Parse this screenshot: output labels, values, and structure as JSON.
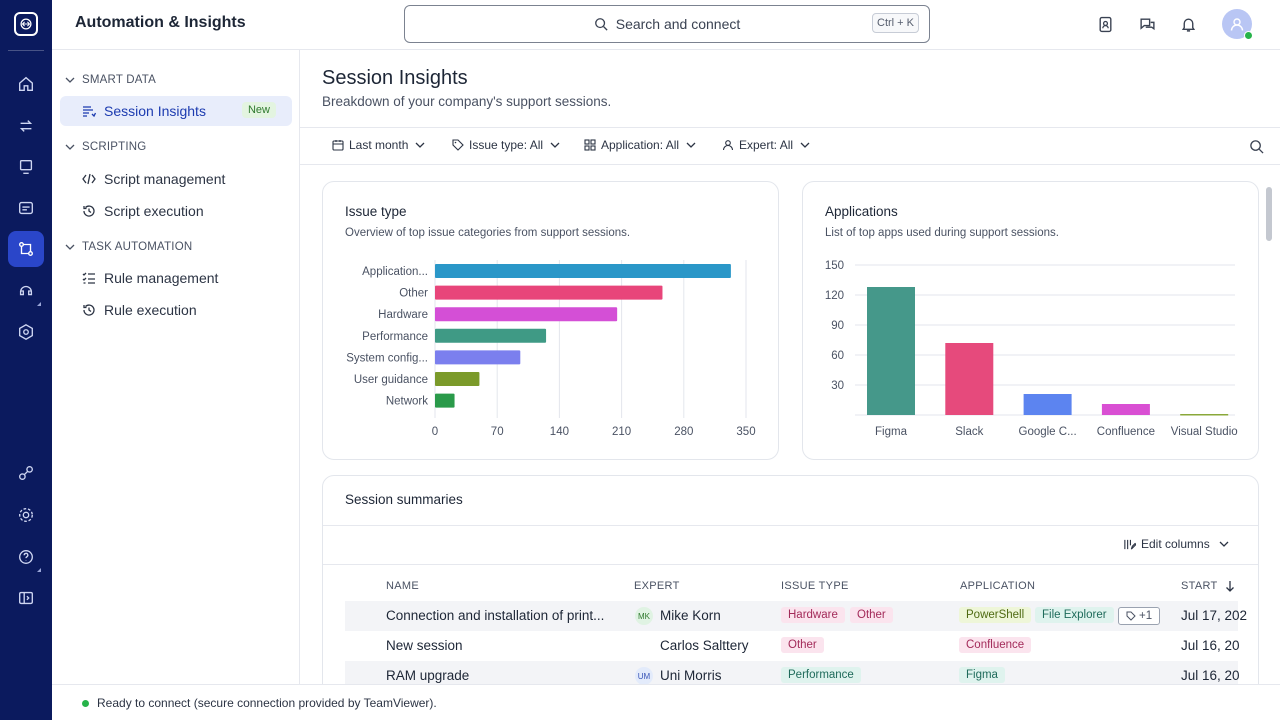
{
  "header": {
    "title": "Automation & Insights",
    "search_placeholder": "Search and connect",
    "shortcut": "Ctrl + K"
  },
  "sidebar": {
    "sections": [
      {
        "label": "SMART DATA",
        "items": [
          {
            "label": "Session Insights",
            "badge": "New"
          }
        ]
      },
      {
        "label": "SCRIPTING",
        "items": [
          {
            "label": "Script management"
          },
          {
            "label": "Script execution"
          }
        ]
      },
      {
        "label": "TASK AUTOMATION",
        "items": [
          {
            "label": "Rule management"
          },
          {
            "label": "Rule execution"
          }
        ]
      }
    ]
  },
  "page": {
    "title": "Session Insights",
    "subtitle": "Breakdown of your company's support sessions."
  },
  "filters": {
    "period": "Last month",
    "issue_type": "Issue type: All",
    "application": "Application: All",
    "expert": "Expert: All"
  },
  "issue_card": {
    "title": "Issue type",
    "subtitle": "Overview of top issue categories from support sessions."
  },
  "apps_card": {
    "title": "Applications",
    "subtitle": "List of top apps used during support sessions."
  },
  "chart_data": [
    {
      "type": "bar",
      "orientation": "horizontal",
      "title": "Issue type",
      "categories": [
        "Application...",
        "Other",
        "Hardware",
        "Performance",
        "System config...",
        "User guidance",
        "Network"
      ],
      "values": [
        333,
        256,
        205,
        125,
        96,
        50,
        22
      ],
      "colors": [
        "#2a97c8",
        "#e8457a",
        "#d44fd6",
        "#3f9a85",
        "#7b7fee",
        "#7b9a2a",
        "#2a9a4a"
      ],
      "xticks": [
        "0",
        "70",
        "140",
        "210",
        "280",
        "350"
      ],
      "xlim": [
        0,
        350
      ]
    },
    {
      "type": "bar",
      "orientation": "vertical",
      "title": "Applications",
      "categories": [
        "Figma",
        "Slack",
        "Google C...",
        "Confluence",
        "Visual Studio"
      ],
      "values": [
        128,
        72,
        21,
        11,
        1
      ],
      "colors": [
        "#45988a",
        "#e64a7c",
        "#5c84f0",
        "#d94fd3",
        "#8aa83a"
      ],
      "yticks": [
        "150",
        "120",
        "90",
        "60",
        "30"
      ],
      "ylim": [
        0,
        150
      ]
    }
  ],
  "summaries": {
    "title": "Session summaries",
    "edit_columns": "Edit columns",
    "columns": [
      "NAME",
      "EXPERT",
      "ISSUE TYPE",
      "APPLICATION",
      "START"
    ],
    "rows": [
      {
        "name": "Connection and installation of print...",
        "initials": "MK",
        "expert": "Mike Korn",
        "issues": [
          "Hardware",
          "Other"
        ],
        "apps": [
          "PowerShell",
          "File Explorer"
        ],
        "more": "+1",
        "start": "Jul 17, 202"
      },
      {
        "name": "New session",
        "initials": "",
        "expert": "Carlos Salttery",
        "issues": [
          "Other"
        ],
        "apps": [
          "Confluence"
        ],
        "more": "",
        "start": "Jul 16, 20"
      },
      {
        "name": "RAM upgrade",
        "initials": "UM",
        "expert": "Uni Morris",
        "issues": [
          "Performance"
        ],
        "apps": [
          "Figma"
        ],
        "more": "",
        "start": "Jul 16, 20"
      }
    ]
  },
  "status": {
    "text": "Ready to connect (secure connection provided by TeamViewer)."
  }
}
